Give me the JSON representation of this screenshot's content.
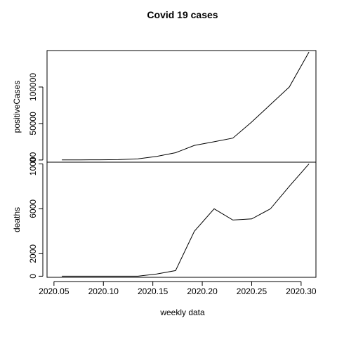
{
  "chart_data": {
    "type": "line",
    "title": "Covid 19 cases",
    "xlabel": "weekly data",
    "x_ticks": [
      "2020.05",
      "2020.10",
      "2020.15",
      "2020.20",
      "2020.25",
      "2020.30"
    ],
    "xlim": [
      2020.043,
      2020.315
    ],
    "panels": [
      {
        "ylabel": "positiveCases",
        "ylim": [
          -3000,
          150000
        ],
        "y_ticks": [
          0,
          50000,
          100000
        ],
        "y_tick_labels": [
          "0",
          "50000",
          "100000"
        ],
        "series": [
          {
            "x": [
              2020.058,
              2020.077,
              2020.096,
              2020.115,
              2020.135,
              2020.154,
              2020.173,
              2020.192,
              2020.212,
              2020.231,
              2020.25,
              2020.269,
              2020.288,
              2020.308
            ],
            "y": [
              200,
              200,
              300,
              500,
              1500,
              5000,
              10000,
              20000,
              25000,
              30000,
              52000,
              76000,
              100000,
              148000
            ]
          }
        ]
      },
      {
        "ylabel": "deaths",
        "ylim": [
          -100,
          10150
        ],
        "y_ticks": [
          0,
          2000,
          6000,
          10000
        ],
        "y_tick_labels": [
          "0",
          "2000",
          "6000",
          "10000"
        ],
        "series": [
          {
            "x": [
              2020.058,
              2020.077,
              2020.096,
              2020.115,
              2020.135,
              2020.154,
              2020.173,
              2020.192,
              2020.212,
              2020.231,
              2020.25,
              2020.269,
              2020.288,
              2020.308
            ],
            "y": [
              0,
              0,
              0,
              0,
              0,
              200,
              500,
              4000,
              6000,
              5000,
              5100,
              6000,
              8000,
              10000
            ]
          }
        ]
      }
    ]
  }
}
